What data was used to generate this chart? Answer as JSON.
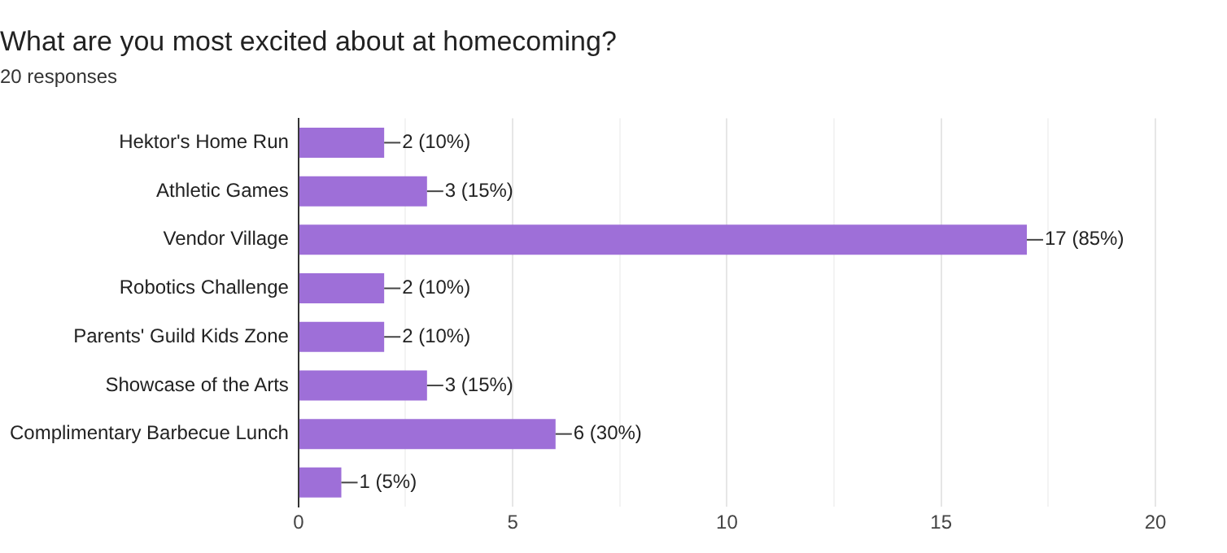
{
  "chart_data": {
    "type": "bar",
    "orientation": "horizontal",
    "title": "What are you most excited about at homecoming?",
    "subtitle": "20 responses",
    "categories": [
      "Hektor's Home Run",
      "Athletic Games",
      "Vendor Village",
      "Robotics Challenge",
      "Parents' Guild Kids Zone",
      "Showcase of the Arts",
      "Complimentary Barbecue Lunch",
      null
    ],
    "values": [
      2,
      3,
      17,
      2,
      2,
      3,
      6,
      1
    ],
    "value_labels": [
      "2 (10%)",
      "3 (15%)",
      "17 (85%)",
      "2 (10%)",
      "2 (10%)",
      "3 (15%)",
      "6 (30%)",
      "1 (5%)"
    ],
    "color": "#9e6fd8",
    "xlim": [
      0,
      20
    ],
    "xticks": [
      0,
      {
        "value": 2.5,
        "label": null
      },
      5,
      {
        "value": 7.5,
        "label": null
      },
      10,
      {
        "value": 12.5,
        "label": null
      },
      15,
      {
        "value": 17.5,
        "label": null
      },
      20
    ],
    "grid": "x"
  }
}
